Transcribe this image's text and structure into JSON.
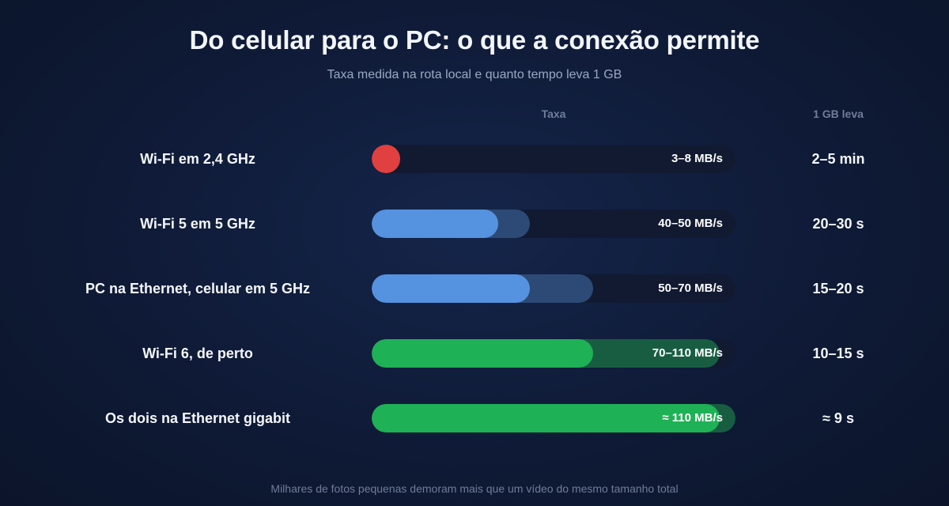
{
  "title": "Do celular para o PC: o que a conexão permite",
  "subtitle": "Taxa medida na rota local e quanto tempo leva 1 GB",
  "columns": {
    "rate": "Taxa",
    "time": "1 GB leva"
  },
  "footer": "Milhares de fotos pequenas demoram mais que um vídeo do mesmo tamanho total",
  "colors": {
    "red": "#e0403f",
    "red_range": "#5a2438",
    "blue": "#5592e0",
    "blue_range": "#2d4a76",
    "green": "#1fb155",
    "green_range": "#185d42",
    "track": "#111a31"
  },
  "chart_data": {
    "type": "bar",
    "title": "Do celular para o PC: o que a conexão permite",
    "subtitle": "Taxa medida na rota local e quanto tempo leva 1 GB",
    "xlabel": "Taxa",
    "xlim": [
      0,
      115
    ],
    "unit": "MB/s",
    "categories": [
      "Wi-Fi em 2,4 GHz",
      "Wi-Fi 5 em 5 GHz",
      "PC na Ethernet, celular em 5 GHz",
      "Wi-Fi 6, de perto",
      "Os dois na Ethernet gigabit"
    ],
    "rows": [
      {
        "label": "Wi-Fi em 2,4 GHz",
        "min": 3,
        "max": 8,
        "rate_text": "3–8 MB/s",
        "time_text": "2–5 min",
        "color": "red"
      },
      {
        "label": "Wi-Fi 5 em 5 GHz",
        "min": 40,
        "max": 50,
        "rate_text": "40–50 MB/s",
        "time_text": "20–30 s",
        "color": "blue"
      },
      {
        "label": "PC na Ethernet, celular em 5 GHz",
        "min": 50,
        "max": 70,
        "rate_text": "50–70 MB/s",
        "time_text": "15–20 s",
        "color": "blue"
      },
      {
        "label": "Wi-Fi 6, de perto",
        "min": 70,
        "max": 110,
        "rate_text": "70–110 MB/s",
        "time_text": "10–15 s",
        "color": "green"
      },
      {
        "label": "Os dois na Ethernet gigabit",
        "min": 110,
        "max": 115,
        "rate_text": "≈ 110 MB/s",
        "time_text": "≈ 9 s",
        "color": "green"
      }
    ]
  }
}
